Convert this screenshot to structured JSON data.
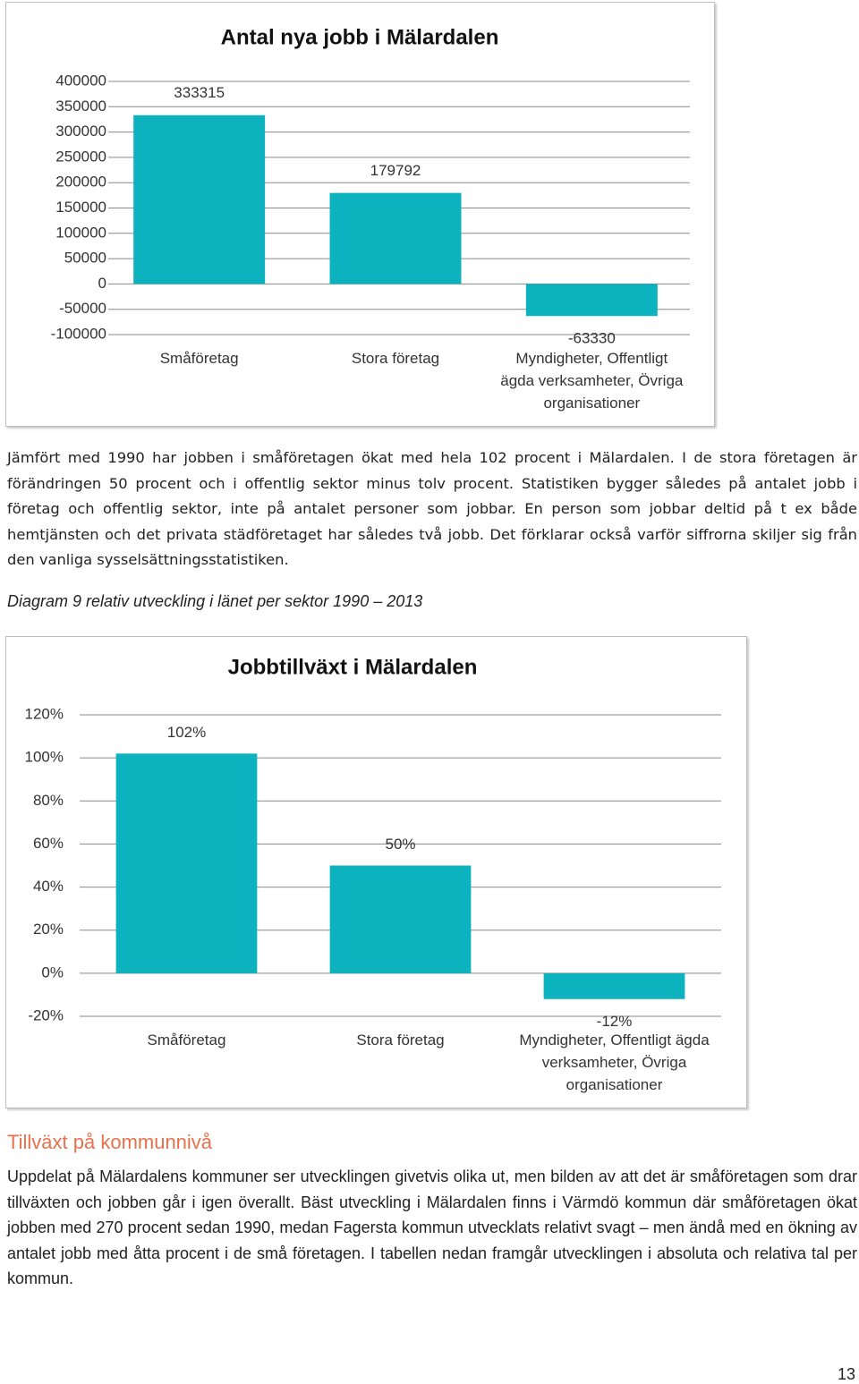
{
  "chart_data": [
    {
      "type": "bar",
      "title": "Antal nya jobb i Mälardalen",
      "categories": [
        "Småföretag",
        "Stora företag",
        "Myndigheter, Offentligt ägda verksamheter, Övriga organisationer"
      ],
      "values": [
        333315,
        179792,
        -63330
      ],
      "color": "#0cb2bd",
      "ylim": [
        -100000,
        400000
      ],
      "yticks": [
        -100000,
        -50000,
        0,
        50000,
        100000,
        150000,
        200000,
        250000,
        300000,
        350000,
        400000
      ],
      "grid": true
    },
    {
      "type": "bar",
      "title": "Jobbtillväxt i Mälardalen",
      "categories": [
        "Småföretag",
        "Stora företag",
        "Myndigheter, Offentligt ägda verksamheter, Övriga organisationer"
      ],
      "values": [
        102,
        50,
        -12
      ],
      "value_labels": [
        "102%",
        "50%",
        "-12%"
      ],
      "color": "#0cb2bd",
      "ylim": [
        -20,
        120
      ],
      "yticks": [
        {
          "value": -20,
          "label": "-20%"
        },
        {
          "value": 0,
          "label": "0%"
        },
        {
          "value": 20,
          "label": "20%"
        },
        {
          "value": 40,
          "label": "40%"
        },
        {
          "value": 60,
          "label": "60%"
        },
        {
          "value": 80,
          "label": "80%"
        },
        {
          "value": 100,
          "label": "100%"
        },
        {
          "value": 120,
          "label": "120%"
        }
      ],
      "grid": true
    }
  ],
  "paragraphs": [
    "Jämfört med 1990 har jobben i småföretagen ökat med hela 102 procent i Mälardalen. I de stora företagen är förändringen 50 procent och i offentlig sektor minus tolv procent. Statistiken bygger således på antalet jobb i företag och offentlig sektor, inte på antalet personer som jobbar. En person som jobbar deltid på t ex både hemtjänsten och det privata städföretaget har således två jobb. Det förklarar också varför siffrorna skiljer sig från den vanliga sysselsättningsstatistiken.",
    "Uppdelat på Mälardalens kommuner ser utvecklingen givetvis olika ut, men bilden av att det är småföretagen som drar tillväxten och jobben går i igen överallt. Bäst utveckling i Mälardalen finns i Värmdö kommun där småföretagen ökat jobben med 270 procent sedan 1990, medan Fagersta kommun utvecklats relativt svagt – men ändå med en ökning av antalet jobb med åtta procent i de små företagen. I tabellen nedan framgår utvecklingen i absoluta och relativa tal per kommun."
  ],
  "caption": "Diagram 9 relativ utveckling i länet per sektor 1990 – 2013",
  "heading": "Tillväxt på kommunnivå",
  "page_number": 13
}
